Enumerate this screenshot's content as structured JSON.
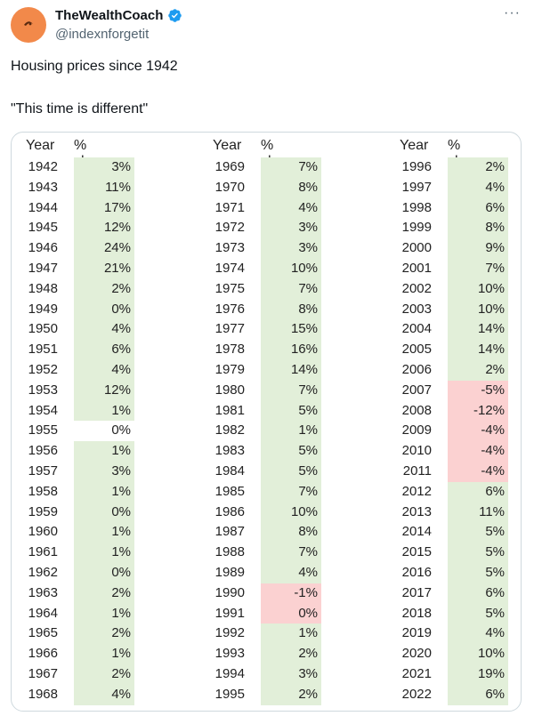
{
  "tweet": {
    "author_name": "TheWealthCoach",
    "handle": "@indexnforgetit",
    "more_label": "···",
    "text_line1": "Housing prices since 1942",
    "text_line2": "\"This time is different\""
  },
  "table": {
    "col_year": "Year",
    "col_change": "% change",
    "columns": [
      {
        "rows": [
          {
            "year": "1942",
            "change": "3%",
            "kind": "pos"
          },
          {
            "year": "1943",
            "change": "11%",
            "kind": "pos"
          },
          {
            "year": "1944",
            "change": "17%",
            "kind": "pos"
          },
          {
            "year": "1945",
            "change": "12%",
            "kind": "pos"
          },
          {
            "year": "1946",
            "change": "24%",
            "kind": "pos"
          },
          {
            "year": "1947",
            "change": "21%",
            "kind": "pos"
          },
          {
            "year": "1948",
            "change": "2%",
            "kind": "pos"
          },
          {
            "year": "1949",
            "change": "0%",
            "kind": "pos"
          },
          {
            "year": "1950",
            "change": "4%",
            "kind": "pos"
          },
          {
            "year": "1951",
            "change": "6%",
            "kind": "pos"
          },
          {
            "year": "1952",
            "change": "4%",
            "kind": "pos"
          },
          {
            "year": "1953",
            "change": "12%",
            "kind": "pos"
          },
          {
            "year": "1954",
            "change": "1%",
            "kind": "pos"
          },
          {
            "year": "1955",
            "change": "0%",
            "kind": "none"
          },
          {
            "year": "1956",
            "change": "1%",
            "kind": "pos"
          },
          {
            "year": "1957",
            "change": "3%",
            "kind": "pos"
          },
          {
            "year": "1958",
            "change": "1%",
            "kind": "pos"
          },
          {
            "year": "1959",
            "change": "0%",
            "kind": "pos"
          },
          {
            "year": "1960",
            "change": "1%",
            "kind": "pos"
          },
          {
            "year": "1961",
            "change": "1%",
            "kind": "pos"
          },
          {
            "year": "1962",
            "change": "0%",
            "kind": "pos"
          },
          {
            "year": "1963",
            "change": "2%",
            "kind": "pos"
          },
          {
            "year": "1964",
            "change": "1%",
            "kind": "pos"
          },
          {
            "year": "1965",
            "change": "2%",
            "kind": "pos"
          },
          {
            "year": "1966",
            "change": "1%",
            "kind": "pos"
          },
          {
            "year": "1967",
            "change": "2%",
            "kind": "pos"
          },
          {
            "year": "1968",
            "change": "4%",
            "kind": "pos"
          }
        ]
      },
      {
        "rows": [
          {
            "year": "1969",
            "change": "7%",
            "kind": "pos"
          },
          {
            "year": "1970",
            "change": "8%",
            "kind": "pos"
          },
          {
            "year": "1971",
            "change": "4%",
            "kind": "pos"
          },
          {
            "year": "1972",
            "change": "3%",
            "kind": "pos"
          },
          {
            "year": "1973",
            "change": "3%",
            "kind": "pos"
          },
          {
            "year": "1974",
            "change": "10%",
            "kind": "pos"
          },
          {
            "year": "1975",
            "change": "7%",
            "kind": "pos"
          },
          {
            "year": "1976",
            "change": "8%",
            "kind": "pos"
          },
          {
            "year": "1977",
            "change": "15%",
            "kind": "pos"
          },
          {
            "year": "1978",
            "change": "16%",
            "kind": "pos"
          },
          {
            "year": "1979",
            "change": "14%",
            "kind": "pos"
          },
          {
            "year": "1980",
            "change": "7%",
            "kind": "pos"
          },
          {
            "year": "1981",
            "change": "5%",
            "kind": "pos"
          },
          {
            "year": "1982",
            "change": "1%",
            "kind": "pos"
          },
          {
            "year": "1983",
            "change": "5%",
            "kind": "pos"
          },
          {
            "year": "1984",
            "change": "5%",
            "kind": "pos"
          },
          {
            "year": "1985",
            "change": "7%",
            "kind": "pos"
          },
          {
            "year": "1986",
            "change": "10%",
            "kind": "pos"
          },
          {
            "year": "1987",
            "change": "8%",
            "kind": "pos"
          },
          {
            "year": "1988",
            "change": "7%",
            "kind": "pos"
          },
          {
            "year": "1989",
            "change": "4%",
            "kind": "pos"
          },
          {
            "year": "1990",
            "change": "-1%",
            "kind": "neg"
          },
          {
            "year": "1991",
            "change": "0%",
            "kind": "neg"
          },
          {
            "year": "1992",
            "change": "1%",
            "kind": "pos"
          },
          {
            "year": "1993",
            "change": "2%",
            "kind": "pos"
          },
          {
            "year": "1994",
            "change": "3%",
            "kind": "pos"
          },
          {
            "year": "1995",
            "change": "2%",
            "kind": "pos"
          }
        ]
      },
      {
        "rows": [
          {
            "year": "1996",
            "change": "2%",
            "kind": "pos"
          },
          {
            "year": "1997",
            "change": "4%",
            "kind": "pos"
          },
          {
            "year": "1998",
            "change": "6%",
            "kind": "pos"
          },
          {
            "year": "1999",
            "change": "8%",
            "kind": "pos"
          },
          {
            "year": "2000",
            "change": "9%",
            "kind": "pos"
          },
          {
            "year": "2001",
            "change": "7%",
            "kind": "pos"
          },
          {
            "year": "2002",
            "change": "10%",
            "kind": "pos"
          },
          {
            "year": "2003",
            "change": "10%",
            "kind": "pos"
          },
          {
            "year": "2004",
            "change": "14%",
            "kind": "pos"
          },
          {
            "year": "2005",
            "change": "14%",
            "kind": "pos"
          },
          {
            "year": "2006",
            "change": "2%",
            "kind": "pos"
          },
          {
            "year": "2007",
            "change": "-5%",
            "kind": "neg"
          },
          {
            "year": "2008",
            "change": "-12%",
            "kind": "neg"
          },
          {
            "year": "2009",
            "change": "-4%",
            "kind": "neg"
          },
          {
            "year": "2010",
            "change": "-4%",
            "kind": "neg"
          },
          {
            "year": "2011",
            "change": "-4%",
            "kind": "neg"
          },
          {
            "year": "2012",
            "change": "6%",
            "kind": "pos"
          },
          {
            "year": "2013",
            "change": "11%",
            "kind": "pos"
          },
          {
            "year": "2014",
            "change": "5%",
            "kind": "pos"
          },
          {
            "year": "2015",
            "change": "5%",
            "kind": "pos"
          },
          {
            "year": "2016",
            "change": "5%",
            "kind": "pos"
          },
          {
            "year": "2017",
            "change": "6%",
            "kind": "pos"
          },
          {
            "year": "2018",
            "change": "5%",
            "kind": "pos"
          },
          {
            "year": "2019",
            "change": "4%",
            "kind": "pos"
          },
          {
            "year": "2020",
            "change": "10%",
            "kind": "pos"
          },
          {
            "year": "2021",
            "change": "19%",
            "kind": "pos"
          },
          {
            "year": "2022",
            "change": "6%",
            "kind": "pos"
          }
        ]
      }
    ]
  },
  "colors": {
    "positive_fill": "#e2efd9",
    "negative_fill": "#fbd1d1",
    "verified_badge": "#1d9bf0",
    "avatar_bg": "#f2894a"
  },
  "icons": {
    "verified": "verified-badge-icon",
    "avatar": "avatar"
  }
}
